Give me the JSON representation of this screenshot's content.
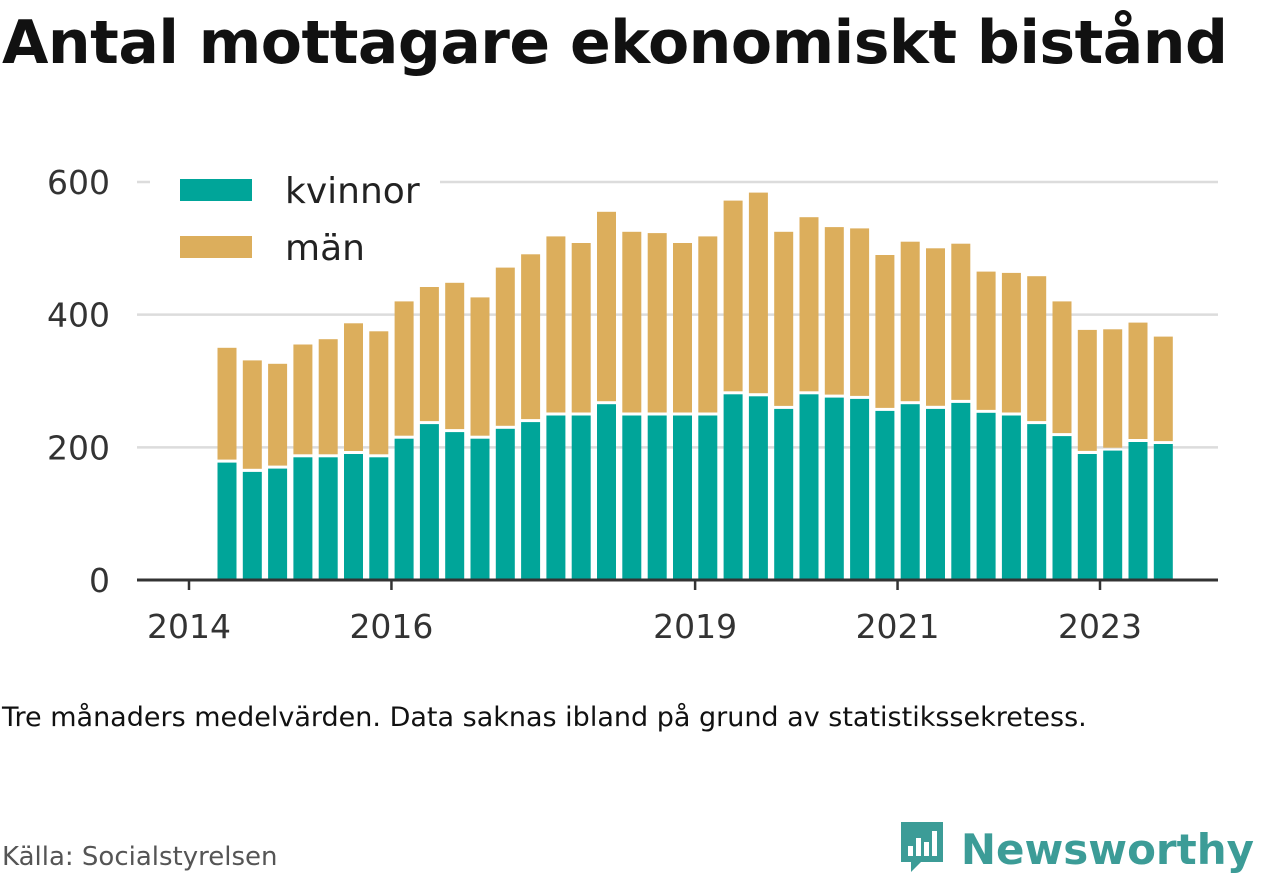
{
  "title": "Antal mottagare ekonomiskt bistånd",
  "note": "Tre månaders medelvärden. Data saknas ibland på grund av statistikssekretess.",
  "source": "Källa: Socialstyrelsen",
  "brand": {
    "name": "Newsworthy",
    "icon": "bar-chart-icon",
    "color": "#3c9c97"
  },
  "chart_data": {
    "type": "bar",
    "stacked": true,
    "x_type": "date",
    "ylim": [
      0,
      600
    ],
    "yticks": [
      0,
      200,
      400,
      600
    ],
    "xticks": [
      "2014",
      "2016",
      "2019",
      "2021",
      "2023"
    ],
    "xtick_dates": [
      "2014-01-01",
      "2016-01-01",
      "2019-01-01",
      "2021-01-01",
      "2023-01-01"
    ],
    "grid": true,
    "legend_position": "top-left",
    "x": [
      "2014-05",
      "2014-08",
      "2014-11",
      "2015-02",
      "2015-05",
      "2015-08",
      "2015-11",
      "2016-02",
      "2016-05",
      "2016-08",
      "2016-11",
      "2017-02",
      "2017-05",
      "2017-08",
      "2017-11",
      "2018-02",
      "2018-05",
      "2018-08",
      "2018-11",
      "2019-02",
      "2019-05",
      "2019-08",
      "2019-11",
      "2020-02",
      "2020-05",
      "2020-08",
      "2020-11",
      "2021-02",
      "2021-05",
      "2021-08",
      "2021-11",
      "2022-02",
      "2022-05",
      "2022-08",
      "2022-11",
      "2023-02",
      "2023-05",
      "2023-08"
    ],
    "series": [
      {
        "name": "kvinnor",
        "color": "#00a599",
        "values": [
          177,
          163,
          168,
          185,
          185,
          190,
          185,
          213,
          235,
          223,
          213,
          228,
          238,
          248,
          248,
          265,
          248,
          248,
          248,
          248,
          280,
          277,
          258,
          280,
          275,
          273,
          255,
          265,
          258,
          267,
          252,
          248,
          235,
          217,
          190,
          195,
          208,
          205
        ]
      },
      {
        "name": "män",
        "color": "#dcae5c",
        "values": [
          173,
          168,
          158,
          170,
          178,
          197,
          190,
          207,
          212,
          225,
          213,
          243,
          253,
          270,
          260,
          290,
          277,
          275,
          260,
          270,
          292,
          307,
          267,
          267,
          257,
          257,
          235,
          245,
          242,
          240,
          213,
          215,
          223,
          203,
          187,
          183,
          180,
          162
        ]
      }
    ]
  }
}
